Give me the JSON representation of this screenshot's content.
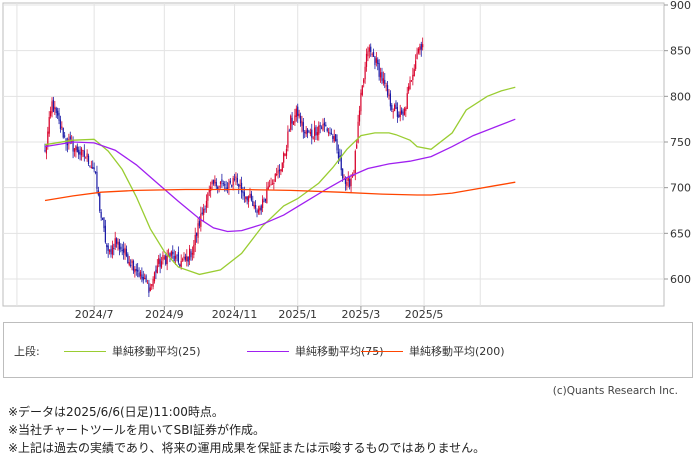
{
  "chart_data": {
    "type": "candlestick",
    "y_ticks": [
      600,
      650,
      700,
      750,
      800,
      850,
      900
    ],
    "ylim": [
      575,
      903
    ],
    "x_ticks": [
      {
        "label": "2024/7",
        "week": 7
      },
      {
        "label": "2024/9",
        "week": 17
      },
      {
        "label": "2024/11",
        "week": 27
      },
      {
        "label": "2025/1",
        "week": 36
      },
      {
        "label": "2025/3",
        "week": 45
      },
      {
        "label": "2025/5",
        "week": 54
      },
      {
        "label": "",
        "week": -4
      },
      {
        "label": "",
        "week": 62
      }
    ],
    "grid": true,
    "up_color": "#d7002a",
    "down_color": "#1a1aa6",
    "weekly_close": [
      738,
      792,
      770,
      752,
      745,
      738,
      733,
      720,
      668,
      626,
      642,
      632,
      622,
      612,
      598,
      590,
      615,
      622,
      626,
      618,
      620,
      632,
      662,
      688,
      703,
      706,
      696,
      713,
      697,
      690,
      673,
      682,
      708,
      712,
      732,
      772,
      782,
      760,
      758,
      768,
      766,
      756,
      728,
      700,
      719,
      797,
      852,
      840,
      820,
      796,
      782,
      776,
      814,
      850,
      862
    ],
    "series": [
      {
        "name": "単純移動平均(25)",
        "color": "#9acd32",
        "points": [
          [
            0,
            747
          ],
          [
            4,
            752
          ],
          [
            7,
            753
          ],
          [
            9,
            740
          ],
          [
            11,
            720
          ],
          [
            13,
            690
          ],
          [
            15,
            655
          ],
          [
            17,
            630
          ],
          [
            19,
            613
          ],
          [
            22,
            605
          ],
          [
            25,
            610
          ],
          [
            28,
            628
          ],
          [
            31,
            658
          ],
          [
            34,
            680
          ],
          [
            36,
            688
          ],
          [
            39,
            705
          ],
          [
            41,
            722
          ],
          [
            43,
            742
          ],
          [
            45,
            757
          ],
          [
            47,
            760
          ],
          [
            49,
            760
          ],
          [
            50,
            758
          ],
          [
            52,
            752
          ],
          [
            53,
            745
          ],
          [
            55,
            742
          ],
          [
            58,
            760
          ],
          [
            60,
            785
          ],
          [
            63,
            800
          ],
          [
            65,
            806
          ],
          [
            67,
            810
          ]
        ]
      },
      {
        "name": "単純移動平均(75)",
        "color": "#a020f0",
        "points": [
          [
            0,
            745
          ],
          [
            4,
            750
          ],
          [
            7,
            749
          ],
          [
            10,
            741
          ],
          [
            13,
            725
          ],
          [
            16,
            705
          ],
          [
            19,
            685
          ],
          [
            22,
            666
          ],
          [
            24,
            656
          ],
          [
            26,
            652
          ],
          [
            28,
            653
          ],
          [
            31,
            660
          ],
          [
            34,
            670
          ],
          [
            37,
            684
          ],
          [
            40,
            698
          ],
          [
            43,
            711
          ],
          [
            46,
            721
          ],
          [
            49,
            726
          ],
          [
            52,
            729
          ],
          [
            55,
            734
          ],
          [
            58,
            745
          ],
          [
            61,
            757
          ],
          [
            64,
            766
          ],
          [
            67,
            775
          ]
        ]
      },
      {
        "name": "単純移動平均(200)",
        "color": "#ff4500",
        "points": [
          [
            0,
            686
          ],
          [
            4,
            691
          ],
          [
            8,
            695
          ],
          [
            13,
            697
          ],
          [
            20,
            698
          ],
          [
            28,
            698
          ],
          [
            35,
            697
          ],
          [
            42,
            695
          ],
          [
            48,
            693
          ],
          [
            53,
            692
          ],
          [
            55,
            692
          ],
          [
            58,
            694
          ],
          [
            61,
            698
          ],
          [
            64,
            702
          ],
          [
            67,
            706
          ]
        ]
      }
    ]
  },
  "legend": {
    "section_label": "上段:",
    "items": [
      {
        "label": "単純移動平均(25)",
        "color": "#9acd32"
      },
      {
        "label": "単純移動平均(75)",
        "color": "#a020f0"
      },
      {
        "label": "単純移動平均(200)",
        "color": "#ff4500"
      }
    ]
  },
  "copyright": "(c)Quants Research Inc.",
  "notes": [
    "※データは2025/6/6(日足)11:00時点。",
    "※当社チャートツールを用いてSBI証券が作成。",
    "※上記は過去の実績であり、将来の運用成果を保証または示唆するものではありません。"
  ]
}
